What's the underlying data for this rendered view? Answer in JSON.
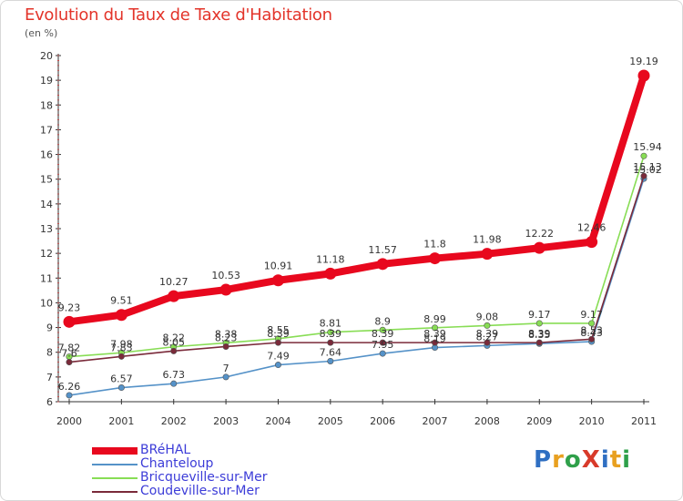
{
  "header": {
    "title": "Evolution du Taux de Taxe d'Habitation",
    "subtitle": "(en %)"
  },
  "logo": {
    "text": "ProXiti",
    "letters": [
      "P",
      "r",
      "o",
      "X",
      "i",
      "t",
      "i"
    ],
    "colors": [
      "#2f6fc2",
      "#e8a020",
      "#2fa04a",
      "#d83a2a",
      "#2f6fc2",
      "#e8a020",
      "#2fa04a"
    ]
  },
  "chart_data": {
    "type": "line",
    "title": "Evolution du Taux de Taxe d'Habitation",
    "subtitle": "(en %)",
    "x": [
      "2000",
      "2001",
      "2002",
      "2003",
      "2004",
      "2005",
      "2006",
      "2007",
      "2008",
      "2009",
      "2010",
      "2011"
    ],
    "ylim": [
      6,
      20
    ],
    "yticks": [
      6,
      7,
      8,
      9,
      10,
      11,
      12,
      13,
      14,
      15,
      16,
      17,
      18,
      19,
      20
    ],
    "grid": false,
    "legend_position": "bottom-left",
    "series": [
      {
        "name": "BRéHAL",
        "color": "#e8081e",
        "values": [
          9.23,
          9.51,
          10.27,
          10.53,
          10.91,
          11.18,
          11.57,
          11.8,
          11.98,
          12.22,
          12.46,
          19.19
        ],
        "labels": [
          "9.23",
          "9.51",
          "10.27",
          "10.53",
          "10.91",
          "11.18",
          "11.57",
          "11.8",
          "11.98",
          "12.22",
          "12.46",
          "19.19"
        ]
      },
      {
        "name": "Chanteloup",
        "color": "#5592c8",
        "values": [
          6.26,
          6.57,
          6.73,
          7,
          7.49,
          7.64,
          7.95,
          8.19,
          8.27,
          8.35,
          8.43,
          15.02
        ],
        "labels": [
          "6.26",
          "6.57",
          "6.73",
          "7",
          "7.49",
          "7.64",
          "7.95",
          "8.19",
          "8.27",
          "8.35",
          "8.43",
          "15.02"
        ]
      },
      {
        "name": "Bricqueville-sur-Mer",
        "color": "#88dd55",
        "values": [
          7.82,
          7.98,
          8.22,
          8.38,
          8.55,
          8.81,
          8.9,
          8.99,
          9.08,
          9.17,
          9.17,
          15.94
        ],
        "labels": [
          "7.82",
          "7.98",
          "8.22",
          "8.38",
          "8.55",
          "8.81",
          "8.9",
          "8.99",
          "9.08",
          "9.17",
          "9.17",
          "15.94"
        ]
      },
      {
        "name": "Coudeville-sur-Mer",
        "color": "#7a2a3a",
        "values": [
          7.6,
          7.83,
          8.05,
          8.23,
          8.39,
          8.39,
          8.39,
          8.39,
          8.39,
          8.39,
          8.53,
          15.13
        ],
        "labels": [
          "7.6",
          "7.83",
          "8.05",
          "8.23",
          "8.39",
          "8.39",
          "8.39",
          "8.39",
          "8.39",
          "8.39",
          "8.53",
          "15.13"
        ]
      }
    ]
  }
}
